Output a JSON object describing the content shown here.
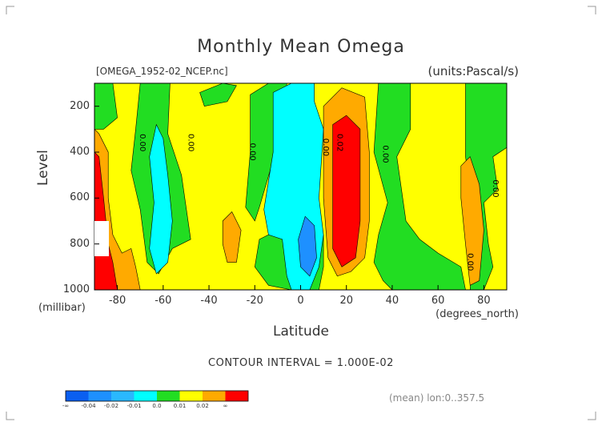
{
  "header": {
    "title": "Monthly Mean Omega",
    "file": "[OMEGA_1952-02_NCEP.nc]",
    "units": "(units:Pascal/s)"
  },
  "axes": {
    "ylabel": "Level",
    "ylabel_unit": "(millibar)",
    "xlabel": "Latitude",
    "xlabel_unit": "(degrees_north)"
  },
  "footer": {
    "contour_interval": "CONTOUR INTERVAL = 1.000E-02",
    "mean_label": "(mean) lon:0..357.5"
  },
  "colorbar": {
    "colors": [
      "#0a5ff0",
      "#1e90ff",
      "#2ab8ff",
      "#00ffff",
      "#22dd22",
      "#ffff00",
      "#ffaa00",
      "#ff0000"
    ],
    "labels": [
      "-∞",
      "-0.04",
      "-0.02",
      "-0.01",
      "0.0",
      "0.01",
      "0.02",
      "∞"
    ]
  },
  "chart_data": {
    "type": "heatmap",
    "title": "Monthly Mean Omega",
    "xlabel": "Latitude",
    "ylabel": "Level",
    "xlim": [
      -90,
      90
    ],
    "ylim": [
      1000,
      100
    ],
    "x_ticks": [
      "-80",
      "-60",
      "-40",
      "-20",
      "0",
      "20",
      "40",
      "60",
      "80"
    ],
    "x_tick_values": [
      -80,
      -60,
      -40,
      -20,
      0,
      20,
      40,
      60,
      80
    ],
    "y_ticks": [
      "200",
      "400",
      "600",
      "800",
      "1000"
    ],
    "y_tick_values": [
      200,
      400,
      600,
      800,
      1000
    ],
    "contour_labels": [
      {
        "text": "0.00",
        "lat": -70,
        "lev": 320
      },
      {
        "text": "0.00",
        "lat": -49,
        "lev": 320
      },
      {
        "text": "0.00",
        "lat": -22,
        "lev": 360
      },
      {
        "text": "0.00",
        "lat": 10,
        "lev": 340
      },
      {
        "text": "0.02",
        "lat": 16,
        "lev": 320
      },
      {
        "text": "0.00",
        "lat": 36,
        "lev": 370
      },
      {
        "text": "0.00",
        "lat": 84,
        "lev": 520
      },
      {
        "text": "0.00",
        "lat": 73,
        "lev": 840
      }
    ],
    "regions": [
      {
        "value": "0.01..0.02",
        "color": "#ffff00",
        "polygon": [
          [
            -90,
            100
          ],
          [
            90,
            100
          ],
          [
            90,
            1000
          ],
          [
            -90,
            1000
          ]
        ]
      },
      {
        "value": "0.0..0.01",
        "color": "#22dd22",
        "polygon": [
          [
            -90,
            100
          ],
          [
            -82,
            100
          ],
          [
            -80,
            250
          ],
          [
            -86,
            300
          ],
          [
            -90,
            300
          ]
        ]
      },
      {
        "value": "0.0..0.01",
        "color": "#22dd22",
        "polygon": [
          [
            -70,
            100
          ],
          [
            -57,
            100
          ],
          [
            -58,
            320
          ],
          [
            -52,
            500
          ],
          [
            -48,
            780
          ],
          [
            -56,
            820
          ],
          [
            -62,
            930
          ],
          [
            -67,
            880
          ],
          [
            -70,
            650
          ],
          [
            -74,
            480
          ],
          [
            -72,
            300
          ]
        ]
      },
      {
        "value": "0.0..0.01",
        "color": "#22dd22",
        "polygon": [
          [
            -44,
            140
          ],
          [
            -34,
            100
          ],
          [
            -28,
            110
          ],
          [
            -32,
            180
          ],
          [
            -42,
            200
          ]
        ]
      },
      {
        "value": "0.0..0.01",
        "color": "#22dd22",
        "polygon": [
          [
            -22,
            150
          ],
          [
            -14,
            100
          ],
          [
            -6,
            100
          ],
          [
            -8,
            300
          ],
          [
            -18,
            640
          ],
          [
            -20,
            700
          ],
          [
            -24,
            640
          ],
          [
            -22,
            400
          ]
        ]
      },
      {
        "value": "0.0..0.01",
        "color": "#22dd22",
        "polygon": [
          [
            -18,
            780
          ],
          [
            -6,
            720
          ],
          [
            4,
            700
          ],
          [
            10,
            760
          ],
          [
            10,
            900
          ],
          [
            8,
            1000
          ],
          [
            -4,
            1000
          ],
          [
            -14,
            980
          ],
          [
            -20,
            900
          ]
        ]
      },
      {
        "value": "0.0..0.01",
        "color": "#22dd22",
        "polygon": [
          [
            34,
            100
          ],
          [
            48,
            100
          ],
          [
            48,
            300
          ],
          [
            42,
            420
          ],
          [
            46,
            700
          ],
          [
            52,
            780
          ],
          [
            60,
            840
          ],
          [
            70,
            900
          ],
          [
            72,
            1000
          ],
          [
            40,
            1000
          ],
          [
            36,
            960
          ],
          [
            32,
            880
          ],
          [
            34,
            760
          ],
          [
            38,
            620
          ],
          [
            32,
            400
          ]
        ]
      },
      {
        "value": "0.0..0.01",
        "color": "#22dd22",
        "polygon": [
          [
            72,
            100
          ],
          [
            90,
            100
          ],
          [
            90,
            380
          ],
          [
            84,
            420
          ],
          [
            86,
            560
          ],
          [
            80,
            620
          ],
          [
            82,
            800
          ],
          [
            84,
            900
          ],
          [
            80,
            1000
          ],
          [
            74,
            1000
          ],
          [
            76,
            700
          ],
          [
            72,
            420
          ]
        ]
      },
      {
        "value": "-0.01..0.0",
        "color": "#00ffff",
        "polygon": [
          [
            -12,
            140
          ],
          [
            -4,
            100
          ],
          [
            6,
            100
          ],
          [
            6,
            180
          ],
          [
            10,
            300
          ],
          [
            8,
            600
          ],
          [
            10,
            760
          ],
          [
            8,
            900
          ],
          [
            4,
            1000
          ],
          [
            -4,
            1000
          ],
          [
            -6,
            940
          ],
          [
            -8,
            780
          ],
          [
            -14,
            760
          ],
          [
            -16,
            650
          ],
          [
            -12,
            400
          ]
        ]
      },
      {
        "value": "-0.01..0.0",
        "color": "#00ffff",
        "polygon": [
          [
            -63,
            280
          ],
          [
            -60,
            340
          ],
          [
            -58,
            500
          ],
          [
            -56,
            700
          ],
          [
            -58,
            880
          ],
          [
            -63,
            930
          ],
          [
            -66,
            820
          ],
          [
            -64,
            620
          ],
          [
            -66,
            420
          ]
        ]
      },
      {
        "value": "-0.02..-0.01",
        "color": "#1e90ff",
        "polygon": [
          [
            2,
            680
          ],
          [
            6,
            720
          ],
          [
            7,
            860
          ],
          [
            4,
            940
          ],
          [
            0,
            900
          ],
          [
            -1,
            780
          ]
        ]
      },
      {
        "value": "0.02..∞",
        "color": "#ffaa00",
        "polygon": [
          [
            10,
            200
          ],
          [
            18,
            120
          ],
          [
            28,
            160
          ],
          [
            30,
            400
          ],
          [
            30,
            700
          ],
          [
            28,
            860
          ],
          [
            22,
            920
          ],
          [
            16,
            940
          ],
          [
            12,
            860
          ],
          [
            10,
            600
          ]
        ]
      },
      {
        "value": "0.02..∞",
        "color": "#ff0000",
        "polygon": [
          [
            14,
            280
          ],
          [
            20,
            240
          ],
          [
            26,
            300
          ],
          [
            26,
            700
          ],
          [
            24,
            860
          ],
          [
            18,
            900
          ],
          [
            14,
            820
          ],
          [
            14,
            500
          ]
        ]
      },
      {
        "value": "0.02..∞",
        "color": "#ffaa00",
        "polygon": [
          [
            -90,
            300
          ],
          [
            -88,
            320
          ],
          [
            -84,
            400
          ],
          [
            -84,
            600
          ],
          [
            -82,
            760
          ],
          [
            -78,
            840
          ],
          [
            -74,
            820
          ],
          [
            -72,
            900
          ],
          [
            -70,
            1000
          ],
          [
            -90,
            1000
          ]
        ]
      },
      {
        "value": "0.02..∞",
        "color": "#ff0000",
        "polygon": [
          [
            -90,
            400
          ],
          [
            -88,
            420
          ],
          [
            -86,
            600
          ],
          [
            -84,
            800
          ],
          [
            -82,
            880
          ],
          [
            -80,
            1000
          ],
          [
            -90,
            1000
          ]
        ]
      },
      {
        "value": "0.01..0.02",
        "color": "#ffaa00",
        "polygon": [
          [
            -34,
            700
          ],
          [
            -30,
            660
          ],
          [
            -26,
            740
          ],
          [
            -28,
            880
          ],
          [
            -32,
            880
          ],
          [
            -34,
            800
          ]
        ]
      },
      {
        "value": "0.01..0.02",
        "color": "#ffaa00",
        "polygon": [
          [
            70,
            460
          ],
          [
            74,
            420
          ],
          [
            78,
            540
          ],
          [
            80,
            740
          ],
          [
            78,
            960
          ],
          [
            74,
            980
          ],
          [
            72,
            800
          ],
          [
            70,
            600
          ]
        ]
      }
    ]
  }
}
